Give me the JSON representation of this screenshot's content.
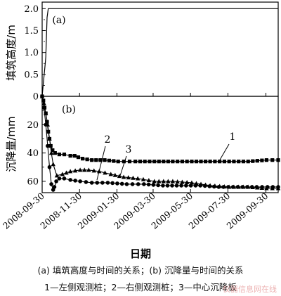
{
  "chart_data": [
    {
      "panel": "(a)",
      "type": "line",
      "ylabel": "填筑高度/m",
      "y_ticks": [
        "0",
        "0.5",
        "1.0",
        "1.5",
        "2.0"
      ],
      "ylim": [
        0,
        2.15
      ],
      "x_ticks": [
        "2008-09-30",
        "2008-11-30",
        "2009-01-30",
        "2009-03-30",
        "2009-05-30",
        "2009-07-30",
        "2009-09-30"
      ],
      "xlim": [
        "2008-09-30",
        "2009-10-20"
      ],
      "series": [
        {
          "x": [
            "2008-09-30",
            "2008-10-02",
            "2008-10-03",
            "2008-10-05",
            "2008-10-06",
            "2008-10-08",
            "2008-10-10",
            "2009-10-20"
          ],
          "y": [
            0.0,
            0.3,
            0.45,
            0.75,
            0.9,
            1.8,
            2.0,
            2.0
          ]
        }
      ]
    },
    {
      "panel": "(b)",
      "type": "line",
      "ylabel": "沉降量/mm",
      "y_ticks": [
        "0",
        "20",
        "40",
        "60"
      ],
      "ylim": [
        0,
        68
      ],
      "y_inverted": true,
      "x_ticks": [
        "2008-09-30",
        "2008-11-30",
        "2009-01-30",
        "2009-03-30",
        "2009-05-30",
        "2009-07-30",
        "2009-09-30"
      ],
      "xlim": [
        "2008-09-30",
        "2009-10-20"
      ],
      "xlabel": "日期",
      "series": [
        {
          "name": "1",
          "marker": "square",
          "x": [
            "2008-09-30",
            "2008-10-02",
            "2008-10-04",
            "2008-10-06",
            "2008-10-08",
            "2008-10-10",
            "2008-10-12",
            "2008-10-14",
            "2008-10-17",
            "2008-10-21",
            "2008-10-28",
            "2008-11-05",
            "2008-11-15",
            "2008-11-22",
            "2008-11-28",
            "2008-12-05",
            "2008-12-20",
            "2009-01-10",
            "2009-02-01",
            "2009-03-01",
            "2009-04-01",
            "2009-05-01",
            "2009-06-01",
            "2009-07-01",
            "2009-08-01",
            "2009-09-01",
            "2009-10-01",
            "2009-10-20"
          ],
          "y": [
            0,
            3,
            8,
            12,
            18,
            25,
            30,
            35,
            38,
            40,
            41,
            41,
            42,
            42,
            43,
            44,
            45,
            45,
            46,
            46,
            46,
            46,
            46,
            46,
            46,
            46,
            45,
            45
          ]
        },
        {
          "name": "2",
          "marker": "triangle",
          "x": [
            "2008-09-30",
            "2008-10-03",
            "2008-10-06",
            "2008-10-09",
            "2008-10-12",
            "2008-10-15",
            "2008-10-18",
            "2008-10-24",
            "2008-11-02",
            "2008-11-15",
            "2008-12-01",
            "2008-12-15",
            "2009-01-01",
            "2009-01-20",
            "2009-02-10",
            "2009-03-05",
            "2009-04-01",
            "2009-05-01",
            "2009-06-01",
            "2009-07-01",
            "2009-08-01",
            "2009-09-01",
            "2009-10-01",
            "2009-10-20"
          ],
          "y": [
            0,
            5,
            12,
            20,
            30,
            40,
            48,
            56,
            55,
            53,
            52,
            52,
            53,
            55,
            57,
            58,
            60,
            60,
            61,
            63,
            64,
            64,
            65,
            65
          ]
        },
        {
          "name": "3",
          "marker": "circle",
          "x": [
            "2008-09-30",
            "2008-10-03",
            "2008-10-06",
            "2008-10-09",
            "2008-10-12",
            "2008-10-15",
            "2008-10-18",
            "2008-10-20",
            "2008-10-23",
            "2008-10-28",
            "2008-11-05",
            "2008-11-15",
            "2008-12-01",
            "2008-12-20",
            "2009-01-15",
            "2009-02-15",
            "2009-03-15",
            "2009-04-15",
            "2009-05-15",
            "2009-06-15",
            "2009-07-15",
            "2009-08-15",
            "2009-09-15",
            "2009-10-20"
          ],
          "y": [
            0,
            8,
            20,
            35,
            50,
            62,
            66,
            64,
            60,
            58,
            58,
            59,
            60,
            61,
            61,
            62,
            62,
            63,
            63,
            63,
            64,
            64,
            64,
            64
          ]
        }
      ]
    }
  ],
  "caption": {
    "line1": "(a)  填筑高度与时间的关系；(b)  沉降量与时间的关系",
    "line2": "1—左侧观测桩；2—右侧观测桩；3—中心沉降板"
  },
  "watermark": "仪器信息网在线"
}
